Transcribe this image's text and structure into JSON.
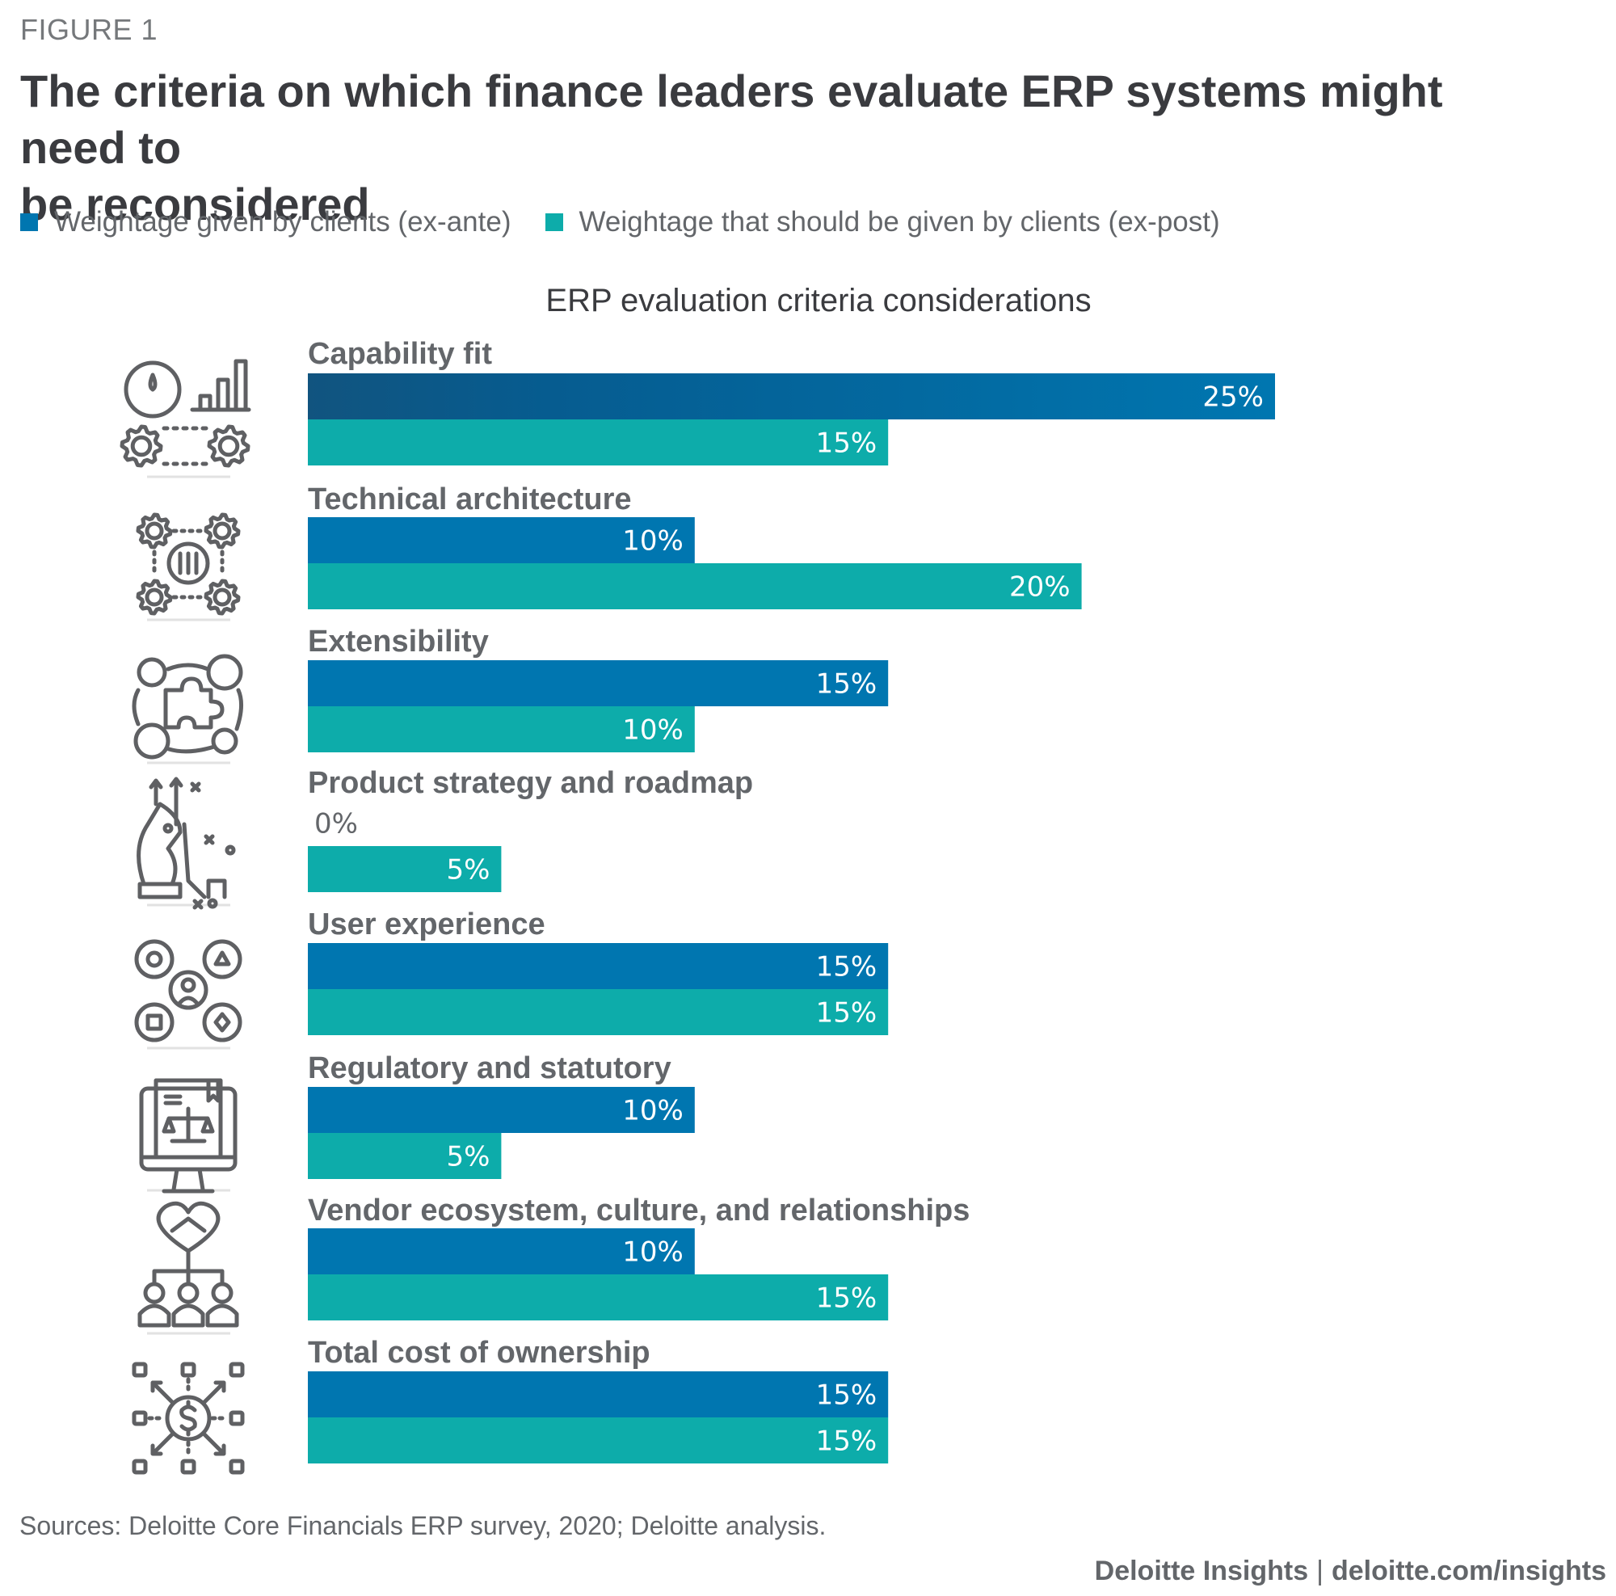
{
  "figure_label": "FIGURE 1",
  "title": "The criteria on which finance leaders evaluate ERP systems might need to be reconsidered",
  "title_lines": [
    "The criteria on which finance leaders evaluate ERP systems might need to",
    "be reconsidered"
  ],
  "colors": {
    "ex_ante": "#0076B0",
    "ex_ante_dark": "#11547F",
    "ex_post": "#0DACAA",
    "text": "#63666A",
    "title": "#3A3B3F"
  },
  "legend": [
    {
      "label": "Weightage given by clients (ex-ante)",
      "color": "#0076B0"
    },
    {
      "label": "Weightage that should be given by clients (ex-post)",
      "color": "#0DACAA"
    }
  ],
  "chart_data": {
    "type": "bar",
    "orientation": "horizontal",
    "title": "ERP evaluation criteria considerations",
    "xlabel": "",
    "ylabel": "",
    "unit": "%",
    "xlim": [
      0,
      25
    ],
    "grid": false,
    "legend_position": "top-left",
    "categories": [
      "Capability fit",
      "Technical architecture",
      "Extensibility",
      "Product strategy and roadmap",
      "User experience",
      "Regulatory and statutory",
      "Vendor ecosystem, culture, and relationships",
      "Total cost of ownership"
    ],
    "icons": [
      "gauge-chart-gears-icon",
      "gears-network-sliders-icon",
      "puzzle-network-icon",
      "chess-knight-strategy-icon",
      "user-options-icon",
      "monitor-law-scale-icon",
      "handshake-heart-team-icon",
      "dollar-distribution-icon"
    ],
    "series": [
      {
        "name": "Weightage given by clients (ex-ante)",
        "values": [
          25,
          10,
          15,
          0,
          15,
          10,
          10,
          15
        ],
        "labels": [
          "25%",
          "10%",
          "15%",
          "0%",
          "15%",
          "10%",
          "10%",
          "15%"
        ]
      },
      {
        "name": "Weightage that should be given by clients (ex-post)",
        "values": [
          15,
          20,
          10,
          5,
          15,
          5,
          15,
          15
        ],
        "labels": [
          "15%",
          "20%",
          "10%",
          "5%",
          "15%",
          "5%",
          "15%",
          "15%"
        ]
      }
    ]
  },
  "source": "Sources: Deloitte Core Financials ERP survey, 2020; Deloitte analysis.",
  "footer": {
    "brand": "Deloitte Insights",
    "separator": "|",
    "url": "deloitte.com/insights"
  }
}
